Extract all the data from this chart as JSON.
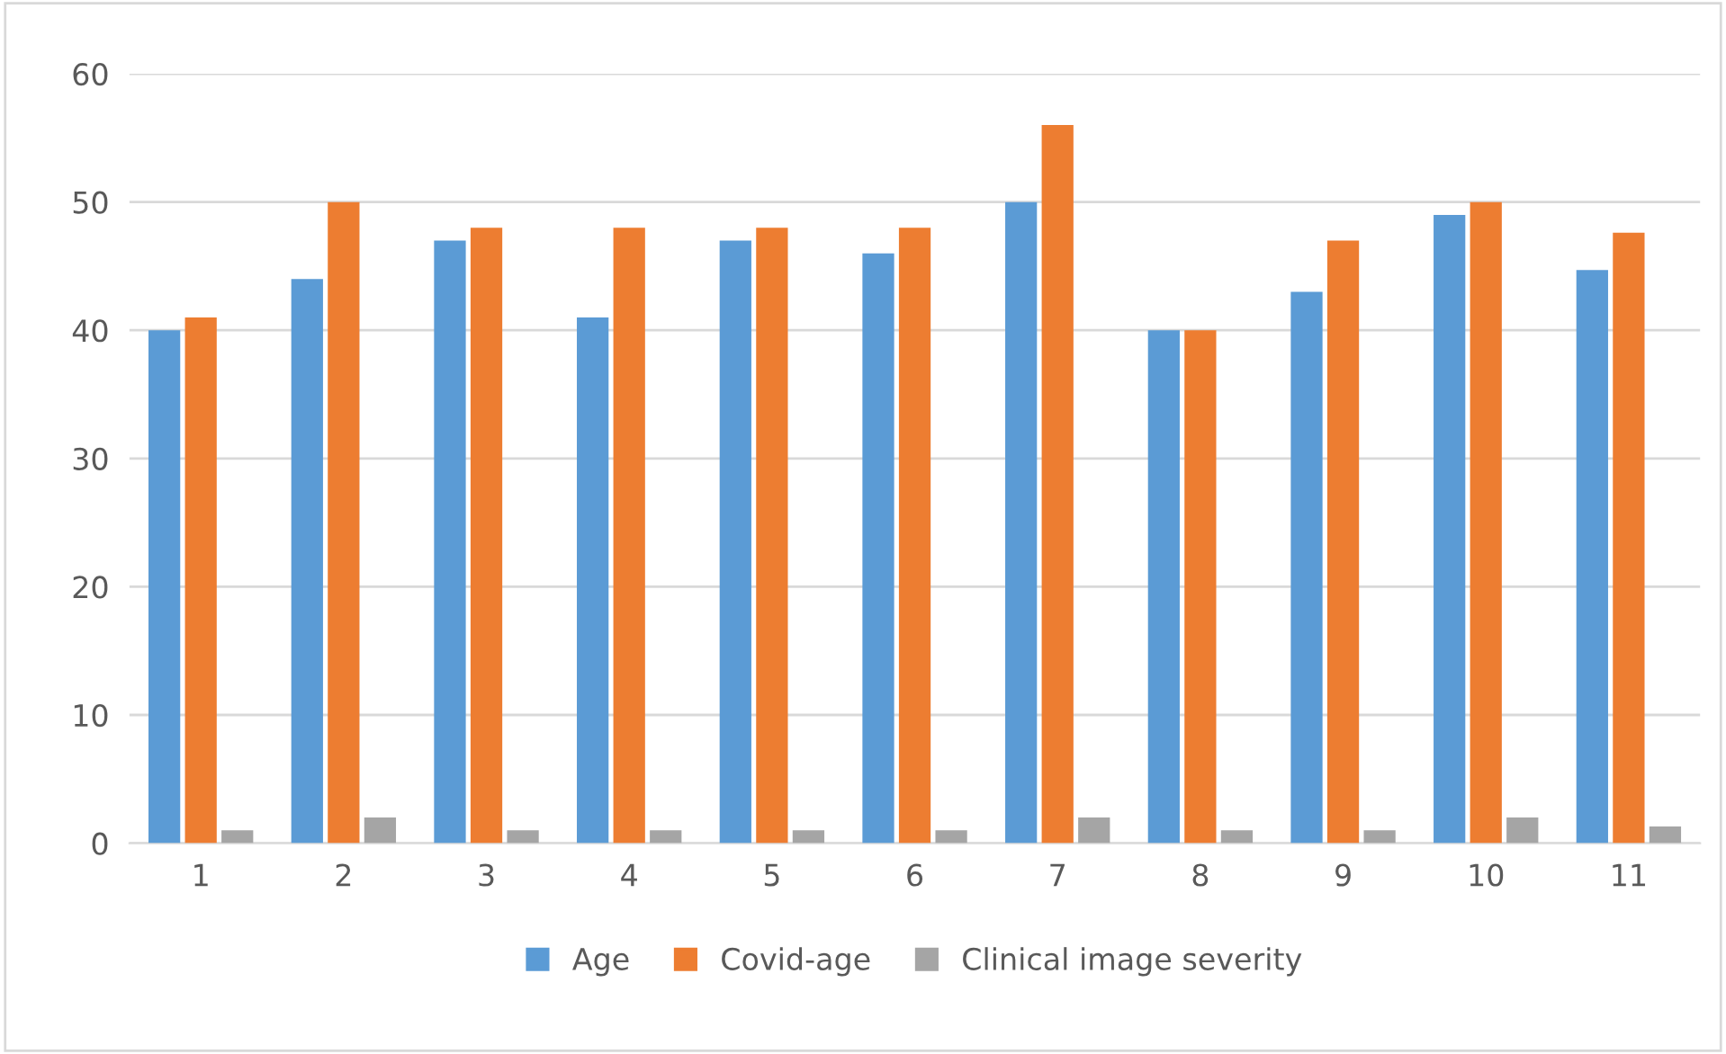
{
  "chart_data": {
    "type": "bar",
    "categories": [
      "1",
      "2",
      "3",
      "4",
      "5",
      "6",
      "7",
      "8",
      "9",
      "10",
      "11"
    ],
    "series": [
      {
        "name": "Age",
        "color": "#5b9bd5",
        "values": [
          40,
          44,
          47,
          41,
          47,
          46,
          50,
          40,
          43,
          49,
          44.7
        ]
      },
      {
        "name": "Covid-age",
        "color": "#ed7d31",
        "values": [
          41,
          50,
          48,
          48,
          48,
          48,
          56,
          40,
          47,
          50,
          47.6
        ]
      },
      {
        "name": "Clinical image severity",
        "color": "#a5a5a5",
        "values": [
          1,
          2,
          1,
          1,
          1,
          1,
          2,
          1,
          1,
          2,
          1.3
        ]
      }
    ],
    "ylim": [
      0,
      60
    ],
    "yticks": [
      0,
      10,
      20,
      30,
      40,
      50,
      60
    ],
    "grid": "y",
    "legend": "bottom"
  }
}
